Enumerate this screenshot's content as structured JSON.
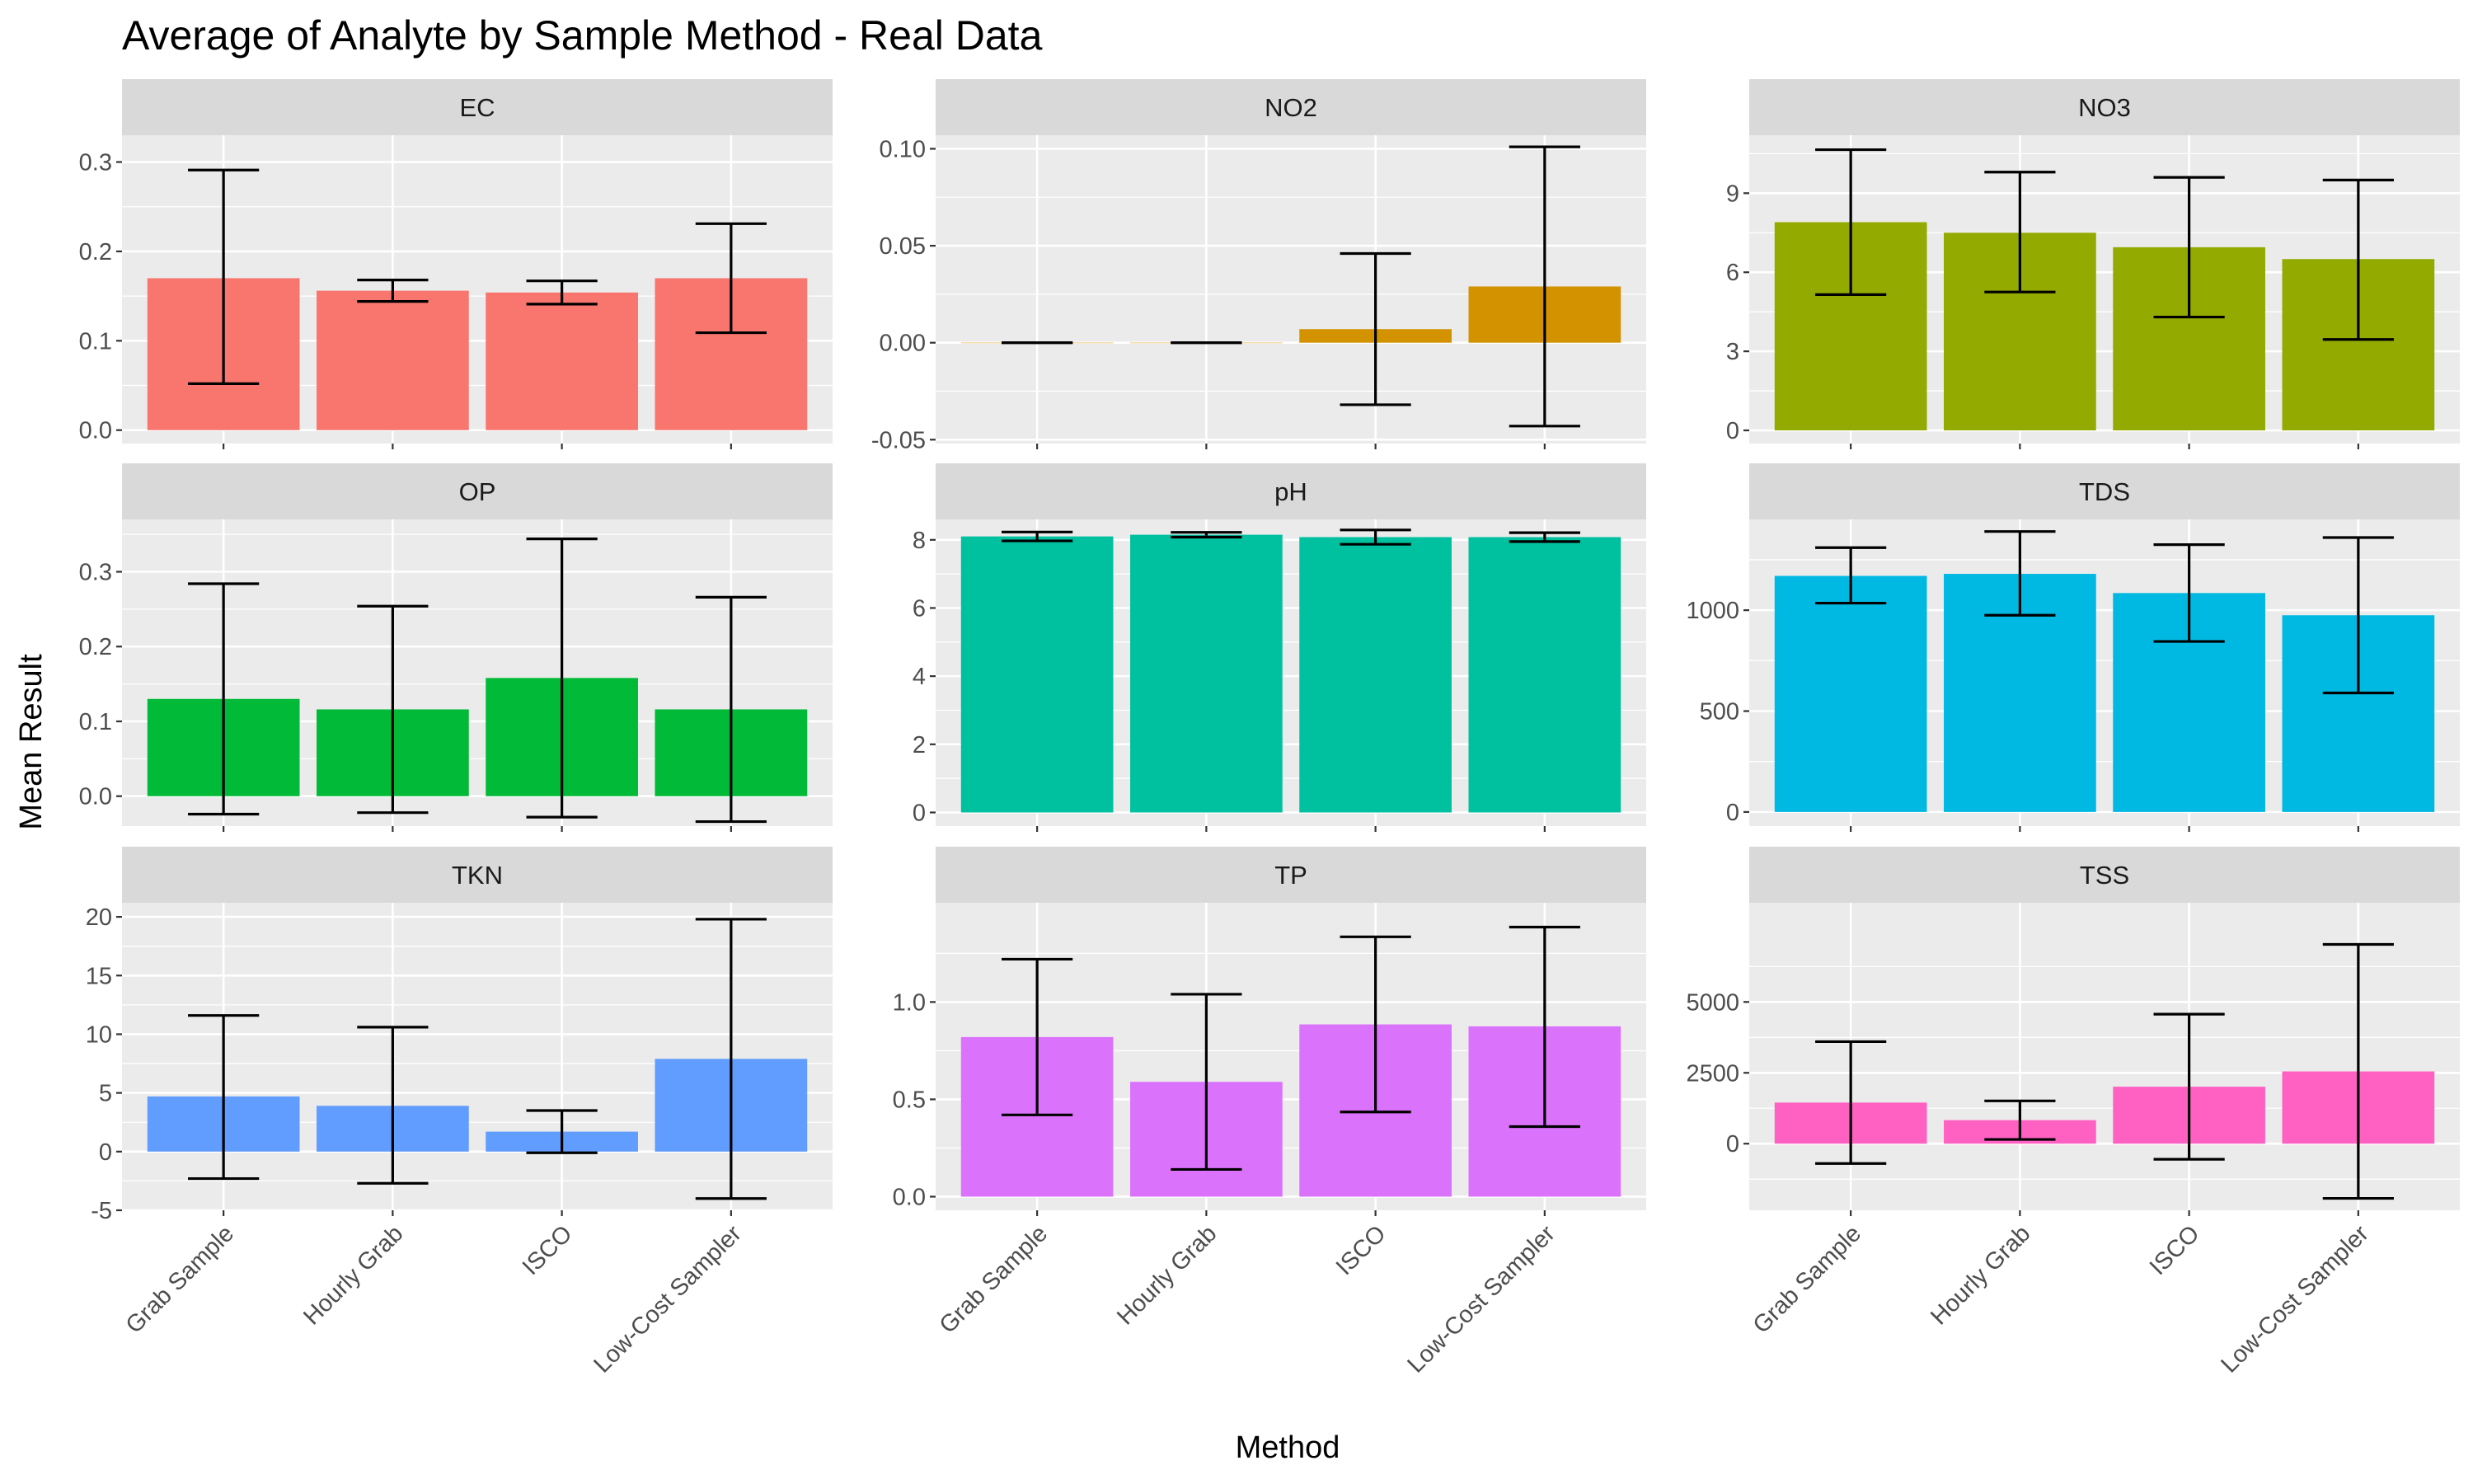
{
  "chart_data": {
    "type": "bar",
    "title": "Average of Analyte by Sample Method - Real Data",
    "xlabel": "Method",
    "ylabel": "Mean Result",
    "categories": [
      "Grab Sample",
      "Hourly Grab",
      "ISCO",
      "Low-Cost Sampler"
    ],
    "panels": [
      {
        "name": "EC",
        "color": "#F8766D",
        "ylim": [
          -0.015,
          0.33
        ],
        "ticks": [
          0.0,
          0.1,
          0.2,
          0.3
        ],
        "tick_labels": [
          "0.0",
          "0.1",
          "0.2",
          "0.3"
        ],
        "values": [
          0.17,
          0.156,
          0.154,
          0.17
        ],
        "err_low": [
          0.052,
          0.144,
          0.141,
          0.109
        ],
        "err_high": [
          0.291,
          0.168,
          0.167,
          0.231
        ]
      },
      {
        "name": "NO2",
        "color": "#D39200",
        "ylim": [
          -0.052,
          0.107
        ],
        "ticks": [
          -0.05,
          0.0,
          0.05,
          0.1
        ],
        "tick_labels": [
          "-0.05",
          "0.00",
          "0.05",
          "0.10"
        ],
        "values": [
          0.0,
          0.0,
          0.007,
          0.029
        ],
        "err_low": [
          0.0,
          0.0,
          -0.032,
          -0.043
        ],
        "err_high": [
          0.0,
          0.0,
          0.046,
          0.101
        ]
      },
      {
        "name": "NO3",
        "color": "#93AA00",
        "ylim": [
          -0.5,
          11.2
        ],
        "ticks": [
          0,
          3,
          6,
          9
        ],
        "tick_labels": [
          "0",
          "3",
          "6",
          "9"
        ],
        "values": [
          7.9,
          7.5,
          6.95,
          6.5
        ],
        "err_low": [
          5.15,
          5.25,
          4.3,
          3.45
        ],
        "err_high": [
          10.65,
          9.8,
          9.6,
          9.5
        ]
      },
      {
        "name": "OP",
        "color": "#00BA38",
        "ylim": [
          -0.04,
          0.37
        ],
        "ticks": [
          0.0,
          0.1,
          0.2,
          0.3
        ],
        "tick_labels": [
          "0.0",
          "0.1",
          "0.2",
          "0.3"
        ],
        "values": [
          0.13,
          0.116,
          0.158,
          0.116
        ],
        "err_low": [
          -0.024,
          -0.022,
          -0.028,
          -0.034
        ],
        "err_high": [
          0.284,
          0.254,
          0.344,
          0.266
        ]
      },
      {
        "name": "pH",
        "color": "#00C19F",
        "ylim": [
          -0.4,
          8.6
        ],
        "ticks": [
          0,
          2,
          4,
          6,
          8
        ],
        "tick_labels": [
          "0",
          "2",
          "4",
          "6",
          "8"
        ],
        "values": [
          8.1,
          8.15,
          8.08,
          8.08
        ],
        "err_low": [
          7.97,
          8.08,
          7.87,
          7.95
        ],
        "err_high": [
          8.23,
          8.22,
          8.29,
          8.21
        ]
      },
      {
        "name": "TDS",
        "color": "#00B9E3",
        "ylim": [
          -70,
          1450
        ],
        "ticks": [
          0,
          500,
          1000
        ],
        "tick_labels": [
          "0",
          "500",
          "1000"
        ],
        "values": [
          1170,
          1180,
          1085,
          975
        ],
        "err_low": [
          1035,
          975,
          845,
          590
        ],
        "err_high": [
          1310,
          1390,
          1325,
          1360
        ]
      },
      {
        "name": "TKN",
        "color": "#619CFF",
        "ylim": [
          -5,
          21.2
        ],
        "ticks": [
          -5,
          0,
          5,
          10,
          15,
          20
        ],
        "tick_labels": [
          "-5",
          "0",
          "5",
          "10",
          "15",
          "20"
        ],
        "values": [
          4.7,
          3.9,
          1.7,
          7.9
        ],
        "err_low": [
          -2.3,
          -2.7,
          -0.1,
          -4.0
        ],
        "err_high": [
          11.6,
          10.6,
          3.5,
          19.8
        ]
      },
      {
        "name": "TP",
        "color": "#DB72FB",
        "ylim": [
          -0.07,
          1.51
        ],
        "ticks": [
          0.0,
          0.5,
          1.0
        ],
        "tick_labels": [
          "0.0",
          "0.5",
          "1.0"
        ],
        "values": [
          0.82,
          0.59,
          0.885,
          0.875
        ],
        "err_low": [
          0.42,
          0.14,
          0.435,
          0.36
        ],
        "err_high": [
          1.22,
          1.04,
          1.335,
          1.385
        ]
      },
      {
        "name": "TSS",
        "color": "#FF61C3",
        "ylim": [
          -2350,
          8500
        ],
        "ticks": [
          0,
          2500,
          5000
        ],
        "tick_labels": [
          "0",
          "2500",
          "5000"
        ],
        "values": [
          1450,
          830,
          2010,
          2550
        ],
        "err_low": [
          -700,
          150,
          -550,
          -1930
        ],
        "err_high": [
          3600,
          1510,
          4570,
          7030
        ]
      }
    ]
  }
}
